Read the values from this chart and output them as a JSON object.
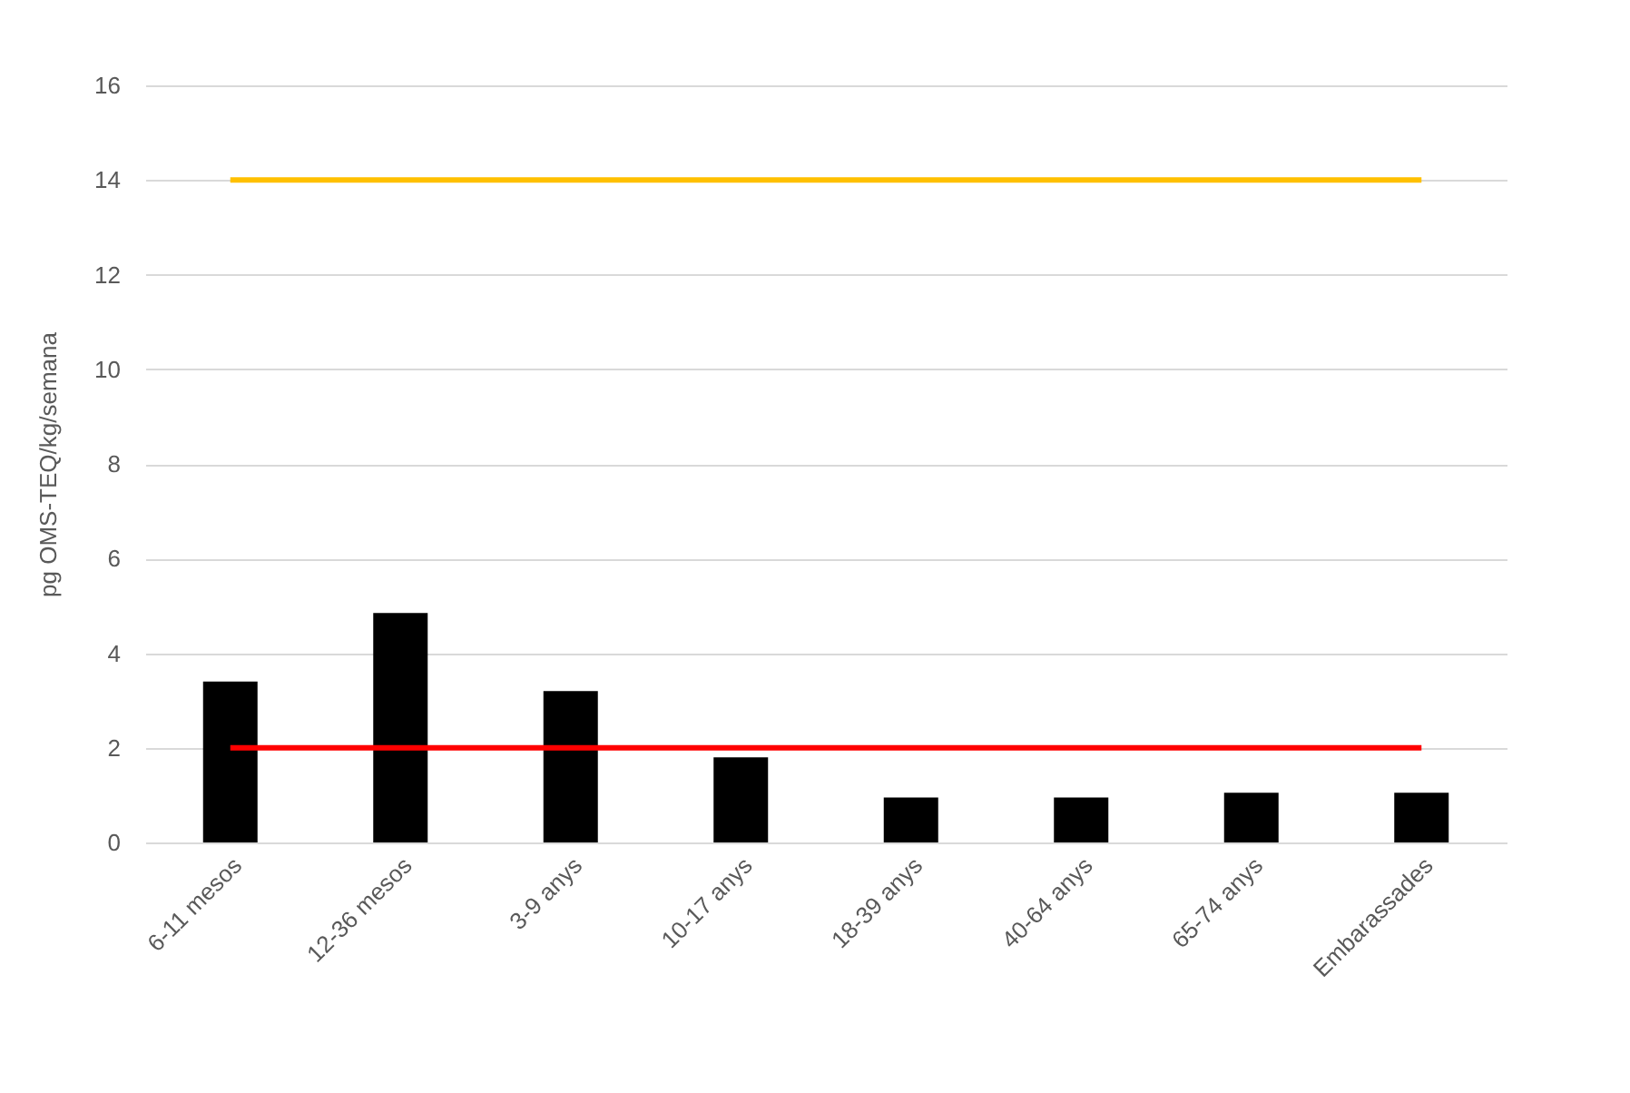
{
  "chart_data": {
    "type": "bar",
    "ylabel": "pg OMS-TEQ/kg/semana",
    "categories": [
      "6-11 mesos",
      "12-36 mesos",
      "3-9 anys",
      "10-17 anys",
      "18-39 anys",
      "40-64 anys",
      "65-74 anys",
      "Embarassades"
    ],
    "series": [
      {
        "color": "#000000",
        "values": [
          3.4,
          4.85,
          3.2,
          1.8,
          0.95,
          0.95,
          1.05,
          1.05
        ]
      },
      {
        "type": "line",
        "color": "#ffc000",
        "values": [
          14,
          14,
          14,
          14,
          14,
          14,
          14,
          14
        ]
      },
      {
        "type": "line",
        "color": "#ff0000",
        "values": [
          2,
          2,
          2,
          2,
          2,
          2,
          2,
          2
        ]
      }
    ],
    "ylim": [
      0,
      16
    ],
    "yticks": [
      0,
      2,
      4,
      6,
      8,
      10,
      12,
      14,
      16
    ],
    "grid": "y"
  }
}
